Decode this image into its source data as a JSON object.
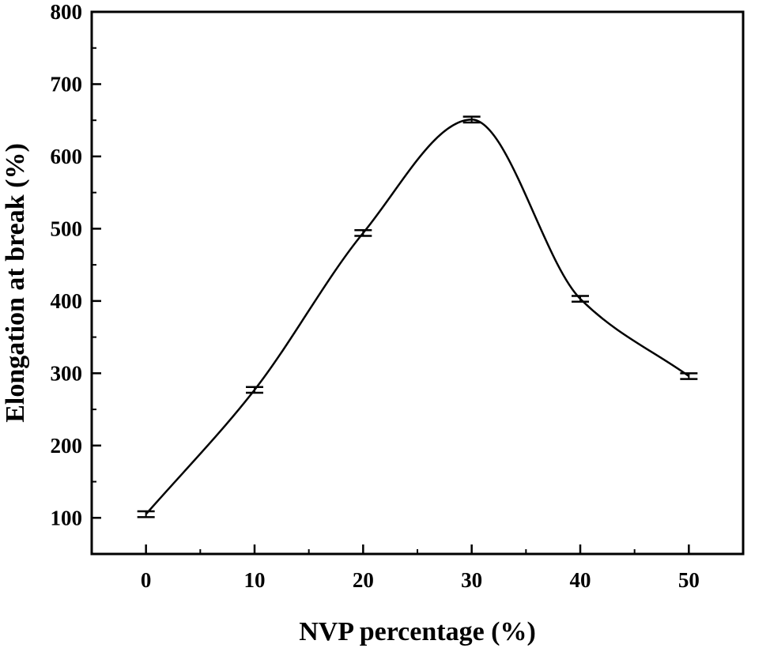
{
  "chart_data": {
    "type": "line",
    "title": "",
    "xlabel": "NVP percentage (%)",
    "ylabel": "Elongation at break (%)",
    "xlim": [
      -5,
      55
    ],
    "ylim": [
      50,
      800
    ],
    "xticks": [
      0,
      10,
      20,
      30,
      40,
      50
    ],
    "yticks": [
      100,
      200,
      300,
      400,
      500,
      600,
      700,
      800
    ],
    "grid": false,
    "legend": "none",
    "series": [
      {
        "name": "Elongation at break",
        "x": [
          0,
          10,
          20,
          30,
          40,
          50
        ],
        "values": [
          105,
          277,
          494,
          651,
          403,
          296
        ],
        "error": [
          4,
          4,
          4,
          4,
          4,
          4
        ],
        "smooth": true,
        "color": "#000000"
      }
    ]
  }
}
